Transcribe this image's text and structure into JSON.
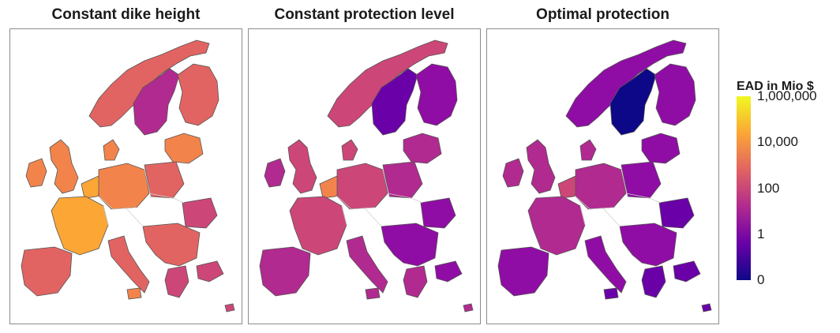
{
  "panels": [
    {
      "title": "Constant dike height",
      "level": 0.62
    },
    {
      "title": "Constant protection level",
      "level": 0.42
    },
    {
      "title": "Optimal protection",
      "level": 0.3
    }
  ],
  "legend": {
    "title": "EAD in Mio $",
    "ticks": [
      {
        "label": "1,000,000",
        "fraction": 0.0
      },
      {
        "label": "10,000",
        "fraction": 0.25
      },
      {
        "label": "100",
        "fraction": 0.5
      },
      {
        "label": "1",
        "fraction": 0.75
      },
      {
        "label": "0",
        "fraction": 1.0
      }
    ],
    "colors": [
      "#f0f921",
      "#fca636",
      "#e16462",
      "#b12a90",
      "#6a00a8",
      "#0d0887"
    ]
  }
}
